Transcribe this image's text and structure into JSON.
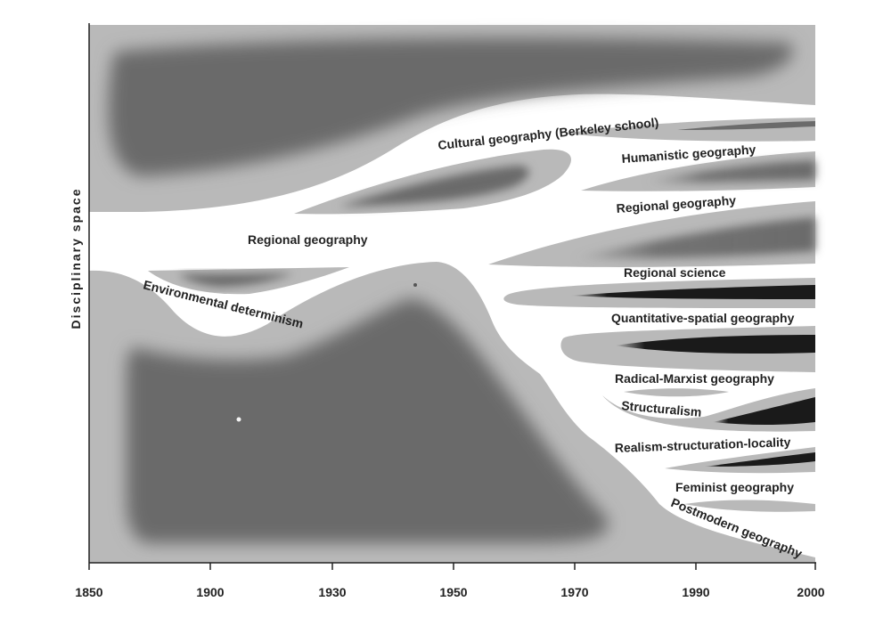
{
  "axis": {
    "y_title": "Disciplinary space",
    "x_ticks": [
      "1850",
      "1900",
      "1930",
      "1950",
      "1970",
      "1990",
      "2000"
    ]
  },
  "labels": {
    "cultural": "Cultural geography (Berkeley school)",
    "humanistic": "Humanistic geography",
    "regional_right": "Regional geography",
    "regional_center": "Regional geography",
    "regional_science": "Regional science",
    "environmental": "Environmental determinism",
    "quantitative": "Quantitative-spatial geography",
    "radical": "Radical-Marxist geography",
    "structuralism": "Structuralism",
    "realism": "Realism-structuration-locality",
    "feminist": "Feminist geography",
    "postmodern": "Postmodern geography"
  },
  "colors": {
    "background": "#ffffff",
    "band": "#b9b9b9",
    "core": "#6b6b6b",
    "intense": "#1a1a1a",
    "text": "#222222"
  }
}
